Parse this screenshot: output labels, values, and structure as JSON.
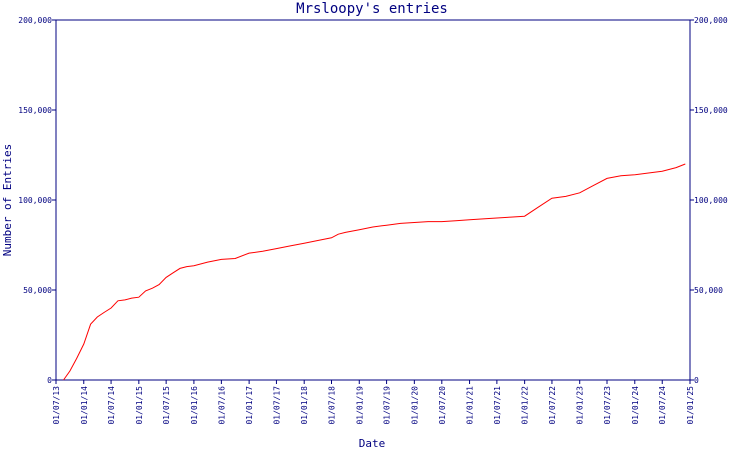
{
  "chart_data": {
    "type": "line",
    "title": "Mrsloopy's entries",
    "xlabel": "Date",
    "ylabel": "Number of Entries",
    "ylim": [
      0,
      200000
    ],
    "y_ticks": [
      0,
      50000,
      100000,
      150000,
      200000
    ],
    "y_tick_labels": [
      "0",
      "50,000",
      "100,000",
      "150,000",
      "200,000"
    ],
    "x_ticks": [
      "2013-07-01",
      "2014-01-01",
      "2014-07-01",
      "2015-01-01",
      "2015-07-01",
      "2016-01-01",
      "2016-07-01",
      "2017-01-01",
      "2017-07-01",
      "2018-01-01",
      "2018-07-01",
      "2019-01-01",
      "2019-07-01",
      "2020-01-01",
      "2020-07-01",
      "2021-01-01",
      "2021-07-01",
      "2022-01-01",
      "2022-07-01",
      "2023-01-01",
      "2023-07-01",
      "2024-01-01",
      "2024-07-01",
      "2025-01-01"
    ],
    "x_tick_labels": [
      "01/07/13",
      "01/01/14",
      "01/07/14",
      "01/01/15",
      "01/07/15",
      "01/01/16",
      "01/07/16",
      "01/01/17",
      "01/07/17",
      "01/01/18",
      "01/07/18",
      "01/01/19",
      "01/07/19",
      "01/01/20",
      "01/07/20",
      "01/01/21",
      "01/07/21",
      "01/01/22",
      "01/07/22",
      "01/01/23",
      "01/07/23",
      "01/01/24",
      "01/07/24",
      "01/01/25"
    ],
    "xlim": [
      "2013-07-01",
      "2025-01-01"
    ],
    "grid": false,
    "line_color": "#ff0000",
    "axis_color": "#000080",
    "series": [
      {
        "x": [
          "2013-08-20",
          "2013-10-01",
          "2013-11-15",
          "2014-01-01",
          "2014-02-15",
          "2014-04-01",
          "2014-05-15",
          "2014-07-01",
          "2014-08-15",
          "2014-10-01",
          "2014-11-15",
          "2015-01-01",
          "2015-02-15",
          "2015-04-01",
          "2015-05-15",
          "2015-07-01",
          "2015-08-15",
          "2015-10-01",
          "2015-11-15",
          "2016-01-01",
          "2016-04-01",
          "2016-07-01",
          "2016-10-01",
          "2017-01-01",
          "2017-04-01",
          "2017-07-01",
          "2017-10-01",
          "2018-01-01",
          "2018-04-01",
          "2018-07-01",
          "2018-08-15",
          "2018-10-01",
          "2019-01-01",
          "2019-04-01",
          "2019-07-01",
          "2019-10-01",
          "2020-01-01",
          "2020-04-01",
          "2020-07-01",
          "2020-10-01",
          "2021-01-01",
          "2021-04-01",
          "2021-07-01",
          "2021-10-01",
          "2022-01-01",
          "2022-04-01",
          "2022-07-01",
          "2022-10-01",
          "2023-01-01",
          "2023-04-01",
          "2023-07-01",
          "2023-10-01",
          "2024-01-01",
          "2024-04-01",
          "2024-07-01",
          "2024-10-01",
          "2024-12-01"
        ],
        "y": [
          0,
          5000,
          12000,
          20000,
          31000,
          35000,
          37500,
          40000,
          44000,
          44500,
          45500,
          46000,
          49500,
          51000,
          53000,
          57000,
          59500,
          62000,
          63000,
          63500,
          65500,
          67000,
          67500,
          70500,
          71500,
          73000,
          74500,
          76000,
          77500,
          79000,
          81000,
          82000,
          83500,
          85000,
          86000,
          87000,
          87500,
          88000,
          88000,
          88500,
          89000,
          89500,
          90000,
          90500,
          91000,
          96000,
          101000,
          102000,
          104000,
          108000,
          112000,
          113500,
          114000,
          115000,
          116000,
          118000,
          120000
        ]
      }
    ]
  }
}
